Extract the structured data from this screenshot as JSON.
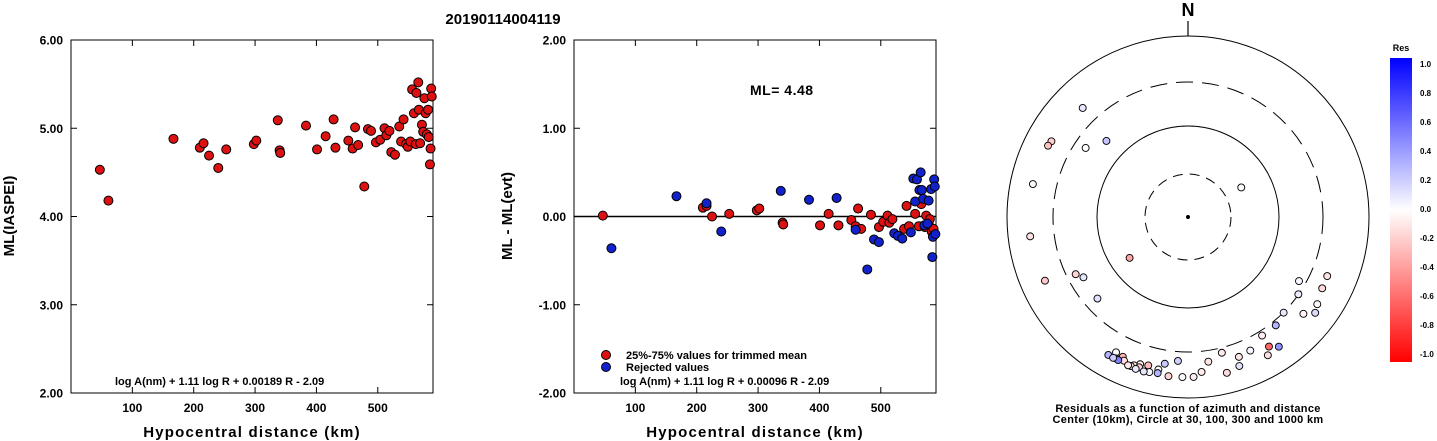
{
  "page_title": "20190114004119",
  "chart_data": [
    {
      "type": "scatter",
      "ylabel": "ML(IASPEI)",
      "xlabel": "Hypocentral distance (km)",
      "xlim": [
        0,
        590
      ],
      "ylim": [
        2.0,
        6.0
      ],
      "x_ticks": [
        "100",
        "200",
        "300",
        "400",
        "500"
      ],
      "y_ticks": [
        "2.00",
        "3.00",
        "4.00",
        "5.00",
        "6.00"
      ],
      "formula": "log A(nm) + 1.11 log R + 0.00189 R - 2.09",
      "color": "#dd1111",
      "points": [
        [
          47,
          4.53
        ],
        [
          61,
          4.18
        ],
        [
          167,
          4.88
        ],
        [
          210,
          4.78
        ],
        [
          216,
          4.83
        ],
        [
          225,
          4.69
        ],
        [
          240,
          4.55
        ],
        [
          253,
          4.76
        ],
        [
          298,
          4.82
        ],
        [
          302,
          4.86
        ],
        [
          337,
          5.09
        ],
        [
          340,
          4.75
        ],
        [
          341,
          4.72
        ],
        [
          383,
          5.03
        ],
        [
          401,
          4.76
        ],
        [
          415,
          4.91
        ],
        [
          428,
          5.1
        ],
        [
          431,
          4.78
        ],
        [
          452,
          4.86
        ],
        [
          459,
          4.77
        ],
        [
          463,
          5.01
        ],
        [
          468,
          4.81
        ],
        [
          478,
          4.34
        ],
        [
          484,
          4.99
        ],
        [
          489,
          4.97
        ],
        [
          497,
          4.84
        ],
        [
          504,
          4.87
        ],
        [
          511,
          5.0
        ],
        [
          514,
          4.92
        ],
        [
          519,
          4.97
        ],
        [
          522,
          4.73
        ],
        [
          528,
          4.7
        ],
        [
          535,
          5.02
        ],
        [
          538,
          4.85
        ],
        [
          542,
          5.1
        ],
        [
          546,
          4.82
        ],
        [
          549,
          4.79
        ],
        [
          553,
          4.85
        ],
        [
          556,
          5.44
        ],
        [
          559,
          5.17
        ],
        [
          562,
          4.82
        ],
        [
          563,
          5.4
        ],
        [
          566,
          5.52
        ],
        [
          567,
          5.21
        ],
        [
          569,
          4.83
        ],
        [
          572,
          5.04
        ],
        [
          574,
          4.96
        ],
        [
          576,
          5.34
        ],
        [
          578,
          5.17
        ],
        [
          580,
          4.93
        ],
        [
          582,
          5.21
        ],
        [
          583,
          4.9
        ],
        [
          585,
          4.59
        ],
        [
          586,
          4.77
        ],
        [
          587,
          5.45
        ],
        [
          588,
          5.36
        ]
      ]
    },
    {
      "type": "scatter",
      "ylabel": "ML - ML(evt)",
      "xlabel": "Hypocentral distance (km)",
      "xlim": [
        0,
        590
      ],
      "ylim": [
        -2.0,
        2.0
      ],
      "x_ticks": [
        "100",
        "200",
        "300",
        "400",
        "500"
      ],
      "y_ticks": [
        "-2.00",
        "-1.00",
        "0.00",
        "1.00",
        "2.00"
      ],
      "annotation": "ML= 4.48",
      "formula": "log A(nm) + 1.11 log R + 0.00096 R - 2.09",
      "legend": [
        {
          "label": "25%-75% values for trimmed mean",
          "color": "#dd1111"
        },
        {
          "label": "Rejected values",
          "color": "#1122cc"
        }
      ],
      "series": [
        {
          "color": "#dd1111",
          "points": [
            [
              47,
              0.01
            ],
            [
              210,
              0.1
            ],
            [
              216,
              0.12
            ],
            [
              225,
              0.0
            ],
            [
              253,
              0.03
            ],
            [
              298,
              0.07
            ],
            [
              302,
              0.09
            ],
            [
              340,
              -0.07
            ],
            [
              341,
              -0.09
            ],
            [
              401,
              -0.1
            ],
            [
              415,
              0.03
            ],
            [
              431,
              -0.1
            ],
            [
              452,
              -0.04
            ],
            [
              459,
              -0.11
            ],
            [
              463,
              0.09
            ],
            [
              468,
              -0.14
            ],
            [
              484,
              0.02
            ],
            [
              497,
              -0.12
            ],
            [
              504,
              -0.06
            ],
            [
              511,
              0.01
            ],
            [
              514,
              -0.07
            ],
            [
              519,
              -0.03
            ],
            [
              538,
              -0.14
            ],
            [
              542,
              0.12
            ],
            [
              546,
              -0.11
            ],
            [
              556,
              0.03
            ],
            [
              562,
              -0.11
            ],
            [
              566,
              0.14
            ],
            [
              572,
              -0.12
            ],
            [
              574,
              0.01
            ],
            [
              578,
              -0.08
            ],
            [
              580,
              -0.03
            ],
            [
              583,
              -0.17
            ],
            [
              586,
              -0.14
            ]
          ]
        },
        {
          "color": "#1122cc",
          "points": [
            [
              61,
              -0.36
            ],
            [
              167,
              0.23
            ],
            [
              216,
              0.15
            ],
            [
              240,
              -0.17
            ],
            [
              337,
              0.29
            ],
            [
              383,
              0.19
            ],
            [
              428,
              0.21
            ],
            [
              459,
              -0.15
            ],
            [
              478,
              -0.6
            ],
            [
              489,
              -0.26
            ],
            [
              497,
              -0.29
            ],
            [
              522,
              -0.19
            ],
            [
              528,
              -0.22
            ],
            [
              535,
              -0.25
            ],
            [
              549,
              -0.18
            ],
            [
              553,
              0.43
            ],
            [
              556,
              0.17
            ],
            [
              559,
              0.42
            ],
            [
              563,
              0.3
            ],
            [
              565,
              0.5
            ],
            [
              567,
              0.3
            ],
            [
              569,
              0.2
            ],
            [
              571,
              -0.1
            ],
            [
              576,
              -0.08
            ],
            [
              578,
              0.18
            ],
            [
              582,
              0.31
            ],
            [
              584,
              -0.46
            ],
            [
              585,
              -0.23
            ],
            [
              587,
              0.42
            ],
            [
              588,
              0.34
            ],
            [
              589,
              -0.2
            ]
          ]
        }
      ]
    },
    {
      "type": "polar-scatter",
      "north_label": "N",
      "caption_line1": "Residuals as a function of azimuth and distance",
      "caption_line2": "Center (10km), Circle at 30, 100, 300 and 1000 km",
      "rings": [
        {
          "label": "30",
          "style": "dashed"
        },
        {
          "label": "100",
          "style": "solid"
        },
        {
          "label": "300",
          "style": "dashed"
        },
        {
          "label": "1000",
          "style": "solid"
        }
      ],
      "points": [
        {
          "azimuth": 61,
          "distance": 47,
          "res": 0.01
        },
        {
          "azimuth": 235,
          "distance": 61,
          "res": -0.36
        },
        {
          "azimuth": 313,
          "distance": 167,
          "res": 0.23
        },
        {
          "azimuth": 240,
          "distance": 210,
          "res": 0.1
        },
        {
          "azimuth": 228,
          "distance": 216,
          "res": 0.12
        },
        {
          "azimuth": 304,
          "distance": 225,
          "res": 0.0
        },
        {
          "azimuth": 243,
          "distance": 240,
          "res": -0.17
        },
        {
          "azimuth": 120,
          "distance": 253,
          "res": 0.03
        },
        {
          "azimuth": 125,
          "distance": 298,
          "res": 0.07
        },
        {
          "azimuth": 135,
          "distance": 302,
          "res": 0.09
        },
        {
          "azimuth": 141,
          "distance": 337,
          "res": 0.29
        },
        {
          "azimuth": 148,
          "distance": 340,
          "res": -0.07
        },
        {
          "azimuth": 166,
          "distance": 341,
          "res": -0.09
        },
        {
          "azimuth": 184,
          "distance": 383,
          "res": 0.19
        },
        {
          "azimuth": 172,
          "distance": 401,
          "res": -0.1
        },
        {
          "azimuth": 155,
          "distance": 415,
          "res": 0.03
        },
        {
          "azimuth": 189,
          "distance": 428,
          "res": 0.21
        },
        {
          "azimuth": 160,
          "distance": 431,
          "res": -0.1
        },
        {
          "azimuth": 130,
          "distance": 452,
          "res": -0.04
        },
        {
          "azimuth": 113,
          "distance": 459,
          "res": -0.11
        },
        {
          "azimuth": 316,
          "distance": 463,
          "res": 0.09
        },
        {
          "azimuth": 118,
          "distance": 468,
          "res": -0.14
        },
        {
          "azimuth": 148,
          "distance": 478,
          "res": -0.6
        },
        {
          "azimuth": 208,
          "distance": 484,
          "res": 0.02
        },
        {
          "azimuth": 195,
          "distance": 489,
          "res": -0.26
        },
        {
          "azimuth": 205,
          "distance": 497,
          "res": -0.29
        },
        {
          "azimuth": 198,
          "distance": 504,
          "res": -0.06
        },
        {
          "azimuth": 191,
          "distance": 511,
          "res": 0.01
        },
        {
          "azimuth": 175,
          "distance": 514,
          "res": -0.07
        },
        {
          "azimuth": 124,
          "distance": 519,
          "res": -0.03
        },
        {
          "azimuth": 299,
          "distance": 522,
          "res": -0.19
        },
        {
          "azimuth": 246,
          "distance": 528,
          "res": -0.22
        },
        {
          "azimuth": 297,
          "distance": 535,
          "res": -0.25
        },
        {
          "azimuth": 204,
          "distance": 538,
          "res": -0.14
        },
        {
          "azimuth": 161,
          "distance": 542,
          "res": 0.12
        },
        {
          "azimuth": 200,
          "distance": 546,
          "res": -0.11
        },
        {
          "azimuth": 198,
          "distance": 549,
          "res": -0.18
        },
        {
          "azimuth": 145,
          "distance": 553,
          "res": 0.43
        },
        {
          "azimuth": 282,
          "distance": 556,
          "res": 0.03
        },
        {
          "azimuth": 207,
          "distance": 559,
          "res": 0.42
        },
        {
          "azimuth": 263,
          "distance": 562,
          "res": -0.11
        },
        {
          "azimuth": 191,
          "distance": 563,
          "res": 0.3
        },
        {
          "azimuth": 206,
          "distance": 565,
          "res": 0.5
        },
        {
          "azimuth": 127,
          "distance": 566,
          "res": 0.14
        },
        {
          "azimuth": 210,
          "distance": 567,
          "res": 0.3
        },
        {
          "azimuth": 208,
          "distance": 569,
          "res": 0.2
        },
        {
          "azimuth": 201,
          "distance": 571,
          "res": -0.1
        },
        {
          "azimuth": 150,
          "distance": 572,
          "res": -0.12
        },
        {
          "azimuth": 194,
          "distance": 574,
          "res": 0.01
        },
        {
          "azimuth": 202,
          "distance": 576,
          "res": -0.08
        },
        {
          "azimuth": 178,
          "distance": 578,
          "res": -0.08
        },
        {
          "azimuth": 182,
          "distance": 580,
          "res": -0.03
        },
        {
          "azimuth": 187,
          "distance": 583,
          "res": -0.17
        },
        {
          "azimuth": 166,
          "distance": 586,
          "res": -0.14
        },
        {
          "azimuth": 199,
          "distance": 587,
          "res": 0.08
        },
        {
          "azimuth": 196,
          "distance": 588,
          "res": 0.1
        }
      ]
    },
    {
      "type": "colorbar",
      "title": "Res",
      "ticks": [
        "1.0",
        "0.8",
        "0.6",
        "0.4",
        "0.2",
        "0.0",
        "-0.2",
        "-0.4",
        "-0.6",
        "-0.8",
        "-1.0"
      ],
      "top_color": "#0000ff",
      "mid_color": "#ffffff",
      "bottom_color": "#ff0000"
    }
  ]
}
